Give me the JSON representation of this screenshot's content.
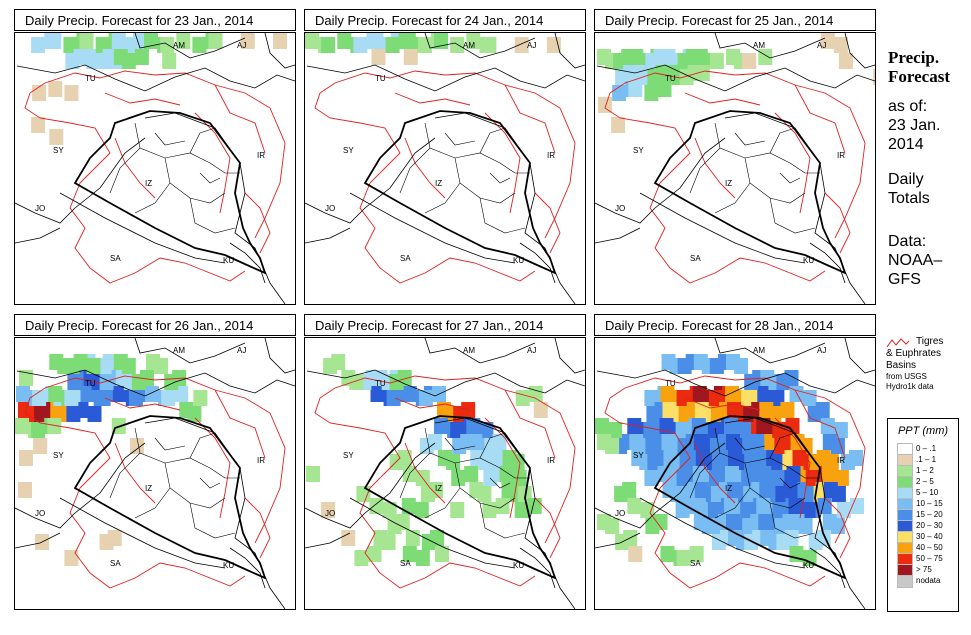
{
  "panels": [
    {
      "title": "Daily Precip. Forecast for  23 Jan., 2014",
      "key": "d23"
    },
    {
      "title": "Daily Precip. Forecast for  24 Jan., 2014",
      "key": "d24"
    },
    {
      "title": "Daily Precip. Forecast for  25 Jan., 2014",
      "key": "d25"
    },
    {
      "title": "Daily Precip. Forecast for  26 Jan., 2014",
      "key": "d26"
    },
    {
      "title": "Daily Precip. Forecast for  27 Jan., 2014",
      "key": "d27"
    },
    {
      "title": "Daily Precip. Forecast for  28 Jan., 2014",
      "key": "d28"
    }
  ],
  "map_labels": {
    "AM": "AM",
    "AJ": "AJ",
    "TU": "TU",
    "SY": "SY",
    "IR": "IR",
    "JO": "JO",
    "SA": "SA",
    "KU": "KU",
    "IZ": "IZ"
  },
  "side": {
    "title_line1": "Precip.",
    "title_line2": "Forecast",
    "asof": "as of:",
    "date_line1": "23 Jan.",
    "date_line2": "2014",
    "totals_line1": "Daily",
    "totals_line2": "Totals",
    "data_line1": "Data:",
    "data_line2": "NOAA–",
    "data_line3": "GFS"
  },
  "basin_legend": {
    "line1": "Tigres",
    "line2": "& Euphrates",
    "line3": "Basins",
    "line4": "from USGS",
    "line5": "Hydro1k data"
  },
  "ppt_legend": {
    "title": "PPT (mm)",
    "items": [
      {
        "label": "0 – .1",
        "color": "#ffffff"
      },
      {
        "label": ".1 – 1",
        "color": "#e6d2b0"
      },
      {
        "label": "1 – 2",
        "color": "#a6e693"
      },
      {
        "label": "2 – 5",
        "color": "#7edc76"
      },
      {
        "label": "5 – 10",
        "color": "#a8dcf4"
      },
      {
        "label": "10 – 15",
        "color": "#79bdf2"
      },
      {
        "label": "15 – 20",
        "color": "#4b8ee8"
      },
      {
        "label": "20 – 30",
        "color": "#2a5ad6"
      },
      {
        "label": "30 – 40",
        "color": "#fbdf67"
      },
      {
        "label": "40 – 50",
        "color": "#f7a20e"
      },
      {
        "label": "50 – 75",
        "color": "#ea2b0f"
      },
      {
        "label": "> 75",
        "color": "#a0171f"
      },
      {
        "label": "nodata",
        "color": "#c8c8c8"
      }
    ]
  },
  "precip": {
    "d23": [
      [
        1,
        0,
        4,
        2
      ],
      [
        2,
        0,
        4,
        1
      ],
      [
        3,
        0,
        3,
        2
      ],
      [
        4,
        0,
        2,
        1
      ],
      [
        5,
        0,
        3,
        2
      ],
      [
        6,
        0,
        4,
        3
      ],
      [
        7,
        0,
        4,
        2
      ],
      [
        8,
        0,
        3,
        2
      ],
      [
        9,
        0,
        2,
        1
      ],
      [
        10,
        0,
        2,
        1
      ],
      [
        11,
        0,
        3,
        2
      ],
      [
        12,
        0,
        2,
        1
      ],
      [
        3,
        1,
        4,
        3
      ],
      [
        4,
        1,
        4,
        4
      ],
      [
        5,
        1,
        4,
        2
      ],
      [
        6,
        1,
        3,
        3
      ],
      [
        9,
        1,
        2,
        1
      ],
      [
        1,
        3,
        1,
        1
      ],
      [
        2,
        3,
        1,
        1
      ],
      [
        3,
        3,
        1,
        1
      ],
      [
        1,
        5,
        1,
        1
      ],
      [
        2,
        6,
        1,
        1
      ],
      [
        14,
        0,
        1,
        1
      ],
      [
        16,
        0,
        1,
        1
      ]
    ],
    "d24": [
      [
        0,
        0,
        2,
        2
      ],
      [
        1,
        0,
        3,
        1
      ],
      [
        2,
        0,
        3,
        2
      ],
      [
        3,
        0,
        4,
        2
      ],
      [
        4,
        0,
        4,
        3
      ],
      [
        5,
        0,
        3,
        2
      ],
      [
        6,
        0,
        3,
        2
      ],
      [
        7,
        0,
        2,
        2
      ],
      [
        8,
        0,
        3,
        1
      ],
      [
        9,
        0,
        2,
        1
      ],
      [
        10,
        0,
        2,
        2
      ],
      [
        11,
        0,
        2,
        1
      ],
      [
        13,
        0,
        1,
        1
      ],
      [
        15,
        0,
        1,
        1
      ],
      [
        4,
        1,
        1,
        1
      ],
      [
        6,
        1,
        1,
        1
      ]
    ],
    "d25": [
      [
        0,
        1,
        2,
        2
      ],
      [
        1,
        1,
        3,
        2
      ],
      [
        2,
        1,
        3,
        3
      ],
      [
        3,
        1,
        4,
        2
      ],
      [
        4,
        1,
        4,
        3
      ],
      [
        5,
        1,
        3,
        2
      ],
      [
        6,
        1,
        3,
        2
      ],
      [
        7,
        1,
        2,
        1
      ],
      [
        8,
        1,
        2,
        2
      ],
      [
        9,
        1,
        1,
        1
      ],
      [
        10,
        1,
        2,
        1
      ],
      [
        1,
        2,
        4,
        2
      ],
      [
        2,
        2,
        4,
        3
      ],
      [
        3,
        2,
        3,
        2
      ],
      [
        4,
        2,
        3,
        3
      ],
      [
        5,
        2,
        2,
        2
      ],
      [
        6,
        2,
        2,
        1
      ],
      [
        1,
        3,
        5,
        2
      ],
      [
        2,
        3,
        4,
        1
      ],
      [
        3,
        3,
        3,
        2
      ],
      [
        0,
        4,
        1,
        1
      ],
      [
        1,
        5,
        1,
        1
      ],
      [
        15,
        1,
        1,
        1
      ],
      [
        17,
        2,
        1,
        1
      ],
      [
        14,
        0,
        1,
        2
      ]
    ],
    "d26": [
      [
        0,
        4,
        10,
        2
      ],
      [
        1,
        4,
        11,
        2
      ],
      [
        2,
        4,
        9,
        3
      ],
      [
        3,
        4,
        7,
        3
      ],
      [
        0,
        3,
        5,
        2
      ],
      [
        1,
        3,
        4,
        3
      ],
      [
        2,
        3,
        3,
        2
      ],
      [
        3,
        3,
        4,
        2
      ],
      [
        4,
        3,
        6,
        3
      ],
      [
        5,
        3,
        6,
        2
      ],
      [
        6,
        3,
        7,
        2
      ],
      [
        7,
        3,
        6,
        2
      ],
      [
        8,
        3,
        5,
        2
      ],
      [
        9,
        3,
        4,
        2
      ],
      [
        3,
        2,
        6,
        2
      ],
      [
        4,
        2,
        7,
        2
      ],
      [
        5,
        2,
        5,
        2
      ],
      [
        6,
        2,
        4,
        2
      ],
      [
        7,
        2,
        3,
        2
      ],
      [
        4,
        1,
        4,
        3
      ],
      [
        5,
        1,
        4,
        3
      ],
      [
        6,
        1,
        3,
        2
      ],
      [
        2,
        1,
        3,
        2
      ],
      [
        3,
        1,
        3,
        3
      ],
      [
        8,
        1,
        2,
        2
      ],
      [
        9,
        2,
        3,
        2
      ],
      [
        10,
        4,
        3,
        2
      ],
      [
        11,
        3,
        2,
        1
      ],
      [
        0,
        2,
        2,
        1
      ],
      [
        0,
        5,
        2,
        2
      ],
      [
        1,
        5,
        3,
        2
      ],
      [
        2,
        5,
        2,
        1
      ],
      [
        1,
        6,
        1,
        1
      ],
      [
        0,
        7,
        1,
        1
      ],
      [
        0,
        9,
        1,
        1
      ],
      [
        1,
        12,
        1,
        1
      ],
      [
        3,
        13,
        1,
        1
      ],
      [
        5,
        12,
        1,
        2
      ],
      [
        6,
        5,
        2,
        1
      ],
      [
        7,
        6,
        1,
        1
      ]
    ],
    "d27": [
      [
        4,
        3,
        7,
        2
      ],
      [
        5,
        3,
        6,
        2
      ],
      [
        6,
        3,
        6,
        3
      ],
      [
        7,
        3,
        5,
        2
      ],
      [
        8,
        4,
        9,
        2
      ],
      [
        9,
        4,
        10,
        2
      ],
      [
        8,
        5,
        6,
        2
      ],
      [
        9,
        5,
        7,
        2
      ],
      [
        10,
        5,
        6,
        2
      ],
      [
        9,
        6,
        5,
        2
      ],
      [
        10,
        6,
        5,
        2
      ],
      [
        11,
        6,
        4,
        2
      ],
      [
        10,
        7,
        4,
        2
      ],
      [
        11,
        7,
        4,
        3
      ],
      [
        12,
        7,
        3,
        2
      ],
      [
        11,
        8,
        4,
        2
      ],
      [
        12,
        8,
        3,
        2
      ],
      [
        12,
        9,
        3,
        2
      ],
      [
        13,
        9,
        2,
        1
      ],
      [
        13,
        10,
        3,
        2
      ],
      [
        7,
        6,
        4,
        2
      ],
      [
        8,
        7,
        3,
        2
      ],
      [
        9,
        8,
        3,
        2
      ],
      [
        10,
        9,
        2,
        2
      ],
      [
        11,
        10,
        2,
        2
      ],
      [
        3,
        2,
        4,
        2
      ],
      [
        4,
        2,
        4,
        3
      ],
      [
        5,
        2,
        3,
        2
      ],
      [
        2,
        2,
        2,
        2
      ],
      [
        1,
        1,
        2,
        2
      ],
      [
        5,
        7,
        2,
        2
      ],
      [
        6,
        8,
        2,
        2
      ],
      [
        3,
        9,
        2,
        1
      ],
      [
        4,
        10,
        2,
        2
      ],
      [
        5,
        11,
        2,
        2
      ],
      [
        6,
        12,
        2,
        1
      ],
      [
        4,
        12,
        2,
        2
      ],
      [
        2,
        12,
        1,
        1
      ],
      [
        7,
        12,
        3,
        2
      ],
      [
        8,
        13,
        2,
        1
      ],
      [
        6,
        13,
        3,
        2
      ],
      [
        3,
        13,
        2,
        2
      ],
      [
        1,
        10,
        1,
        1
      ],
      [
        0,
        8,
        2,
        1
      ],
      [
        13,
        3,
        2,
        2
      ],
      [
        14,
        4,
        1,
        1
      ],
      [
        6,
        10,
        3,
        2
      ],
      [
        7,
        9,
        2,
        2
      ],
      [
        9,
        10,
        2,
        1
      ]
    ],
    "d28": [
      [
        3,
        3,
        5,
        2
      ],
      [
        4,
        3,
        9,
        2
      ],
      [
        5,
        3,
        10,
        3
      ],
      [
        6,
        3,
        11,
        3
      ],
      [
        7,
        3,
        10,
        2
      ],
      [
        8,
        3,
        9,
        2
      ],
      [
        9,
        3,
        8,
        2
      ],
      [
        10,
        3,
        7,
        2
      ],
      [
        3,
        4,
        6,
        2
      ],
      [
        4,
        4,
        8,
        2
      ],
      [
        5,
        4,
        9,
        2
      ],
      [
        6,
        4,
        8,
        2
      ],
      [
        7,
        4,
        9,
        2
      ],
      [
        8,
        4,
        10,
        2
      ],
      [
        9,
        4,
        11,
        3
      ],
      [
        10,
        4,
        9,
        3
      ],
      [
        9,
        5,
        10,
        3
      ],
      [
        10,
        5,
        11,
        2
      ],
      [
        11,
        5,
        10,
        2
      ],
      [
        10,
        6,
        9,
        2
      ],
      [
        11,
        6,
        10,
        3
      ],
      [
        12,
        6,
        9,
        2
      ],
      [
        11,
        7,
        8,
        2
      ],
      [
        12,
        7,
        10,
        2
      ],
      [
        13,
        7,
        9,
        3
      ],
      [
        12,
        8,
        9,
        2
      ],
      [
        13,
        8,
        10,
        3
      ],
      [
        14,
        8,
        9,
        2
      ],
      [
        13,
        9,
        8,
        2
      ],
      [
        14,
        9,
        7,
        2
      ],
      [
        10,
        7,
        7,
        2
      ],
      [
        11,
        8,
        7,
        2
      ],
      [
        12,
        9,
        6,
        2
      ],
      [
        13,
        10,
        6,
        2
      ],
      [
        2,
        5,
        7,
        2
      ],
      [
        3,
        5,
        6,
        2
      ],
      [
        4,
        5,
        7,
        2
      ],
      [
        5,
        5,
        5,
        2
      ],
      [
        6,
        5,
        6,
        2
      ],
      [
        7,
        5,
        7,
        2
      ],
      [
        8,
        5,
        6,
        2
      ],
      [
        1,
        6,
        6,
        2
      ],
      [
        2,
        6,
        5,
        2
      ],
      [
        3,
        6,
        6,
        2
      ],
      [
        4,
        6,
        5,
        2
      ],
      [
        5,
        6,
        6,
        2
      ],
      [
        6,
        6,
        7,
        2
      ],
      [
        7,
        6,
        6,
        2
      ],
      [
        8,
        6,
        7,
        2
      ],
      [
        9,
        6,
        6,
        2
      ],
      [
        2,
        7,
        5,
        2
      ],
      [
        3,
        7,
        6,
        2
      ],
      [
        4,
        7,
        5,
        2
      ],
      [
        5,
        7,
        6,
        2
      ],
      [
        6,
        7,
        7,
        2
      ],
      [
        7,
        7,
        6,
        2
      ],
      [
        8,
        7,
        7,
        2
      ],
      [
        9,
        7,
        6,
        2
      ],
      [
        3,
        8,
        5,
        2
      ],
      [
        4,
        8,
        5,
        2
      ],
      [
        5,
        8,
        6,
        2
      ],
      [
        6,
        8,
        5,
        2
      ],
      [
        7,
        8,
        6,
        2
      ],
      [
        8,
        8,
        5,
        2
      ],
      [
        9,
        8,
        6,
        2
      ],
      [
        10,
        8,
        6,
        2
      ],
      [
        4,
        9,
        5,
        2
      ],
      [
        5,
        9,
        5,
        2
      ],
      [
        6,
        9,
        6,
        2
      ],
      [
        7,
        9,
        5,
        2
      ],
      [
        8,
        9,
        6,
        2
      ],
      [
        9,
        9,
        5,
        2
      ],
      [
        10,
        9,
        6,
        2
      ],
      [
        11,
        9,
        7,
        2
      ],
      [
        5,
        10,
        5,
        2
      ],
      [
        6,
        10,
        5,
        2
      ],
      [
        7,
        10,
        6,
        2
      ],
      [
        8,
        10,
        5,
        2
      ],
      [
        9,
        10,
        6,
        2
      ],
      [
        10,
        10,
        5,
        2
      ],
      [
        11,
        10,
        6,
        2
      ],
      [
        12,
        10,
        7,
        2
      ],
      [
        6,
        11,
        5,
        2
      ],
      [
        7,
        11,
        5,
        2
      ],
      [
        8,
        11,
        6,
        2
      ],
      [
        9,
        11,
        5,
        2
      ],
      [
        10,
        11,
        6,
        2
      ],
      [
        11,
        11,
        5,
        2
      ],
      [
        12,
        11,
        5,
        2
      ],
      [
        7,
        12,
        4,
        2
      ],
      [
        8,
        12,
        5,
        2
      ],
      [
        9,
        12,
        4,
        2
      ],
      [
        10,
        12,
        5,
        2
      ],
      [
        11,
        12,
        4,
        2
      ],
      [
        4,
        1,
        5,
        2
      ],
      [
        5,
        1,
        6,
        2
      ],
      [
        6,
        1,
        5,
        2
      ],
      [
        7,
        1,
        6,
        2
      ],
      [
        8,
        1,
        5,
        2
      ],
      [
        9,
        2,
        6,
        2
      ],
      [
        10,
        2,
        5,
        2
      ],
      [
        11,
        2,
        6,
        2
      ],
      [
        12,
        3,
        5,
        2
      ],
      [
        13,
        4,
        6,
        2
      ],
      [
        14,
        5,
        5,
        2
      ],
      [
        14,
        6,
        6,
        2
      ],
      [
        15,
        7,
        5,
        2
      ],
      [
        0,
        5,
        3,
        2
      ],
      [
        0,
        6,
        2,
        2
      ],
      [
        1,
        9,
        3,
        2
      ],
      [
        2,
        10,
        2,
        2
      ],
      [
        3,
        11,
        3,
        2
      ],
      [
        0,
        11,
        2,
        2
      ],
      [
        1,
        12,
        2,
        2
      ],
      [
        4,
        13,
        3,
        2
      ],
      [
        5,
        13,
        2,
        2
      ],
      [
        2,
        13,
        1,
        1
      ],
      [
        15,
        10,
        4,
        2
      ],
      [
        14,
        11,
        5,
        2
      ],
      [
        13,
        12,
        4,
        2
      ],
      [
        12,
        13,
        3,
        2
      ]
    ]
  }
}
